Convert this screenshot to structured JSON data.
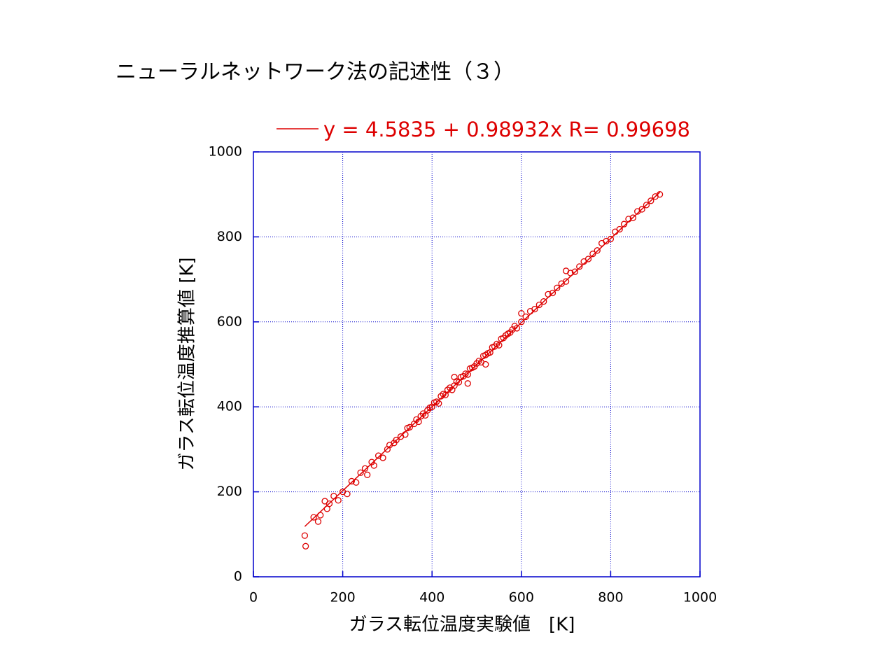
{
  "chart_data": {
    "type": "scatter",
    "title": "ニューラルネットワーク法の記述性（３）",
    "xlabel": "ガラス転位温度実験値　[K]",
    "ylabel": "ガラス転位温度推算値 [K]",
    "xlim": [
      0,
      1000
    ],
    "ylim": [
      0,
      1000
    ],
    "xticks": [
      0,
      200,
      400,
      600,
      800,
      1000
    ],
    "yticks": [
      0,
      200,
      400,
      600,
      800,
      1000
    ],
    "grid": true,
    "axis_color": "#0000cc",
    "grid_color": "#0000cc",
    "series": [
      {
        "color": "#dd0000",
        "marker": "circle",
        "x": [
          115,
          117,
          135,
          145,
          150,
          160,
          165,
          170,
          180,
          190,
          200,
          210,
          220,
          230,
          240,
          250,
          255,
          265,
          270,
          280,
          290,
          300,
          305,
          315,
          320,
          330,
          340,
          345,
          350,
          360,
          365,
          370,
          375,
          380,
          385,
          390,
          395,
          400,
          405,
          410,
          415,
          420,
          425,
          430,
          435,
          440,
          445,
          450,
          455,
          460,
          465,
          470,
          475,
          480,
          485,
          490,
          495,
          500,
          505,
          510,
          515,
          520,
          525,
          530,
          535,
          540,
          545,
          550,
          555,
          560,
          565,
          570,
          575,
          580,
          585,
          590,
          600,
          610,
          620,
          630,
          640,
          650,
          660,
          670,
          680,
          690,
          700,
          710,
          720,
          730,
          740,
          750,
          760,
          770,
          780,
          790,
          800,
          810,
          820,
          830,
          840,
          850,
          860,
          870,
          880,
          890,
          900,
          910,
          450,
          520,
          600,
          480,
          700
        ],
        "y": [
          97,
          72,
          140,
          130,
          145,
          178,
          160,
          172,
          190,
          180,
          200,
          195,
          225,
          222,
          245,
          255,
          240,
          270,
          262,
          285,
          280,
          300,
          310,
          315,
          322,
          330,
          335,
          350,
          352,
          360,
          370,
          365,
          378,
          384,
          380,
          392,
          398,
          400,
          410,
          412,
          408,
          425,
          430,
          428,
          440,
          445,
          440,
          450,
          460,
          458,
          470,
          472,
          478,
          476,
          490,
          492,
          495,
          502,
          508,
          505,
          520,
          522,
          526,
          528,
          540,
          542,
          548,
          545,
          560,
          562,
          568,
          572,
          575,
          582,
          590,
          585,
          600,
          612,
          625,
          630,
          640,
          648,
          665,
          668,
          680,
          690,
          695,
          715,
          718,
          730,
          742,
          748,
          760,
          768,
          785,
          790,
          795,
          812,
          818,
          830,
          842,
          845,
          860,
          865,
          875,
          885,
          895,
          900,
          470,
          500,
          620,
          455,
          720
        ]
      },
      {
        "type": "line",
        "name": "y = 4.5835 + 0.98932x R= 0.99698",
        "color": "#dd0000",
        "x": [
          115,
          910
        ],
        "y": [
          118.4,
          904.9
        ]
      }
    ]
  }
}
